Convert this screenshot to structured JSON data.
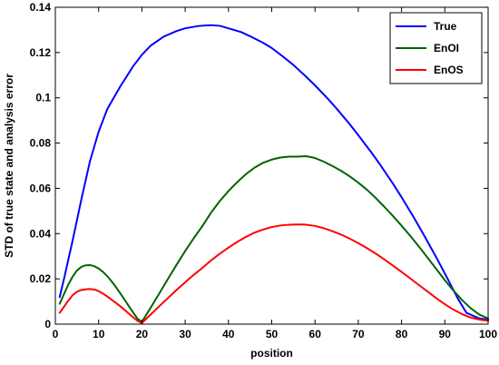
{
  "chart_data": {
    "type": "line",
    "title": "",
    "xlabel": "position",
    "ylabel": "STD of true state and analysis error",
    "xlim": [
      0,
      100
    ],
    "ylim": [
      0,
      0.14
    ],
    "xticks": [
      0,
      10,
      20,
      30,
      40,
      50,
      60,
      70,
      80,
      90,
      100
    ],
    "yticks": [
      0,
      0.02,
      0.04,
      0.06,
      0.08,
      0.1,
      0.12,
      0.14
    ],
    "xtick_labels": [
      "0",
      "10",
      "20",
      "30",
      "40",
      "50",
      "60",
      "70",
      "80",
      "90",
      "100"
    ],
    "ytick_labels": [
      "0",
      "0.02",
      "0.04",
      "0.06",
      "0.08",
      "0.1",
      "0.12",
      "0.14"
    ],
    "grid": false,
    "legend_position": "top-right",
    "series": [
      {
        "name": "True",
        "color": "#0000ff",
        "x": [
          1,
          2,
          4,
          6,
          8,
          10,
          12,
          15,
          18,
          20,
          22,
          25,
          28,
          30,
          33,
          35,
          36,
          38,
          40,
          43,
          45,
          48,
          50,
          53,
          55,
          58,
          60,
          63,
          65,
          68,
          70,
          73,
          75,
          78,
          80,
          83,
          85,
          88,
          90,
          93,
          95,
          98,
          100
        ],
        "y": [
          0.012,
          0.02,
          0.037,
          0.055,
          0.072,
          0.085,
          0.095,
          0.105,
          0.114,
          0.119,
          0.123,
          0.127,
          0.1295,
          0.1307,
          0.1317,
          0.132,
          0.1321,
          0.1318,
          0.1307,
          0.129,
          0.1272,
          0.1243,
          0.122,
          0.1176,
          0.1145,
          0.1092,
          0.1055,
          0.0995,
          0.0952,
          0.0884,
          0.0835,
          0.0759,
          0.0706,
          0.0621,
          0.0561,
          0.0466,
          0.0399,
          0.0296,
          0.0224,
          0.0113,
          0.005,
          0.0025,
          0.002
        ]
      },
      {
        "name": "EnOI",
        "color": "#006400",
        "x": [
          1,
          2,
          3,
          4,
          5,
          6,
          7,
          8,
          9,
          10,
          11,
          12,
          13,
          14,
          15,
          16,
          17,
          18,
          19,
          20,
          22,
          24,
          26,
          28,
          30,
          32,
          34,
          36,
          38,
          40,
          42,
          44,
          46,
          48,
          50,
          52,
          54,
          56,
          57,
          58,
          60,
          62,
          64,
          66,
          68,
          70,
          72,
          74,
          76,
          78,
          80,
          82,
          84,
          86,
          88,
          90,
          92,
          94,
          96,
          98,
          100
        ],
        "y": [
          0.009,
          0.0133,
          0.0175,
          0.021,
          0.0237,
          0.0253,
          0.026,
          0.0261,
          0.0256,
          0.0246,
          0.0231,
          0.0212,
          0.0189,
          0.0164,
          0.0136,
          0.0108,
          0.0079,
          0.0051,
          0.0024,
          0.001,
          0.0072,
          0.0135,
          0.0199,
          0.0262,
          0.0323,
          0.038,
          0.0434,
          0.0493,
          0.0544,
          0.0588,
          0.0627,
          0.0662,
          0.0691,
          0.0713,
          0.0727,
          0.0736,
          0.074,
          0.074,
          0.0741,
          0.0742,
          0.0734,
          0.0718,
          0.0699,
          0.0678,
          0.0653,
          0.0625,
          0.0594,
          0.0558,
          0.0519,
          0.0478,
          0.0435,
          0.039,
          0.0343,
          0.0294,
          0.0244,
          0.0194,
          0.0148,
          0.0106,
          0.007,
          0.0042,
          0.0025
        ]
      },
      {
        "name": "EnOS",
        "color": "#ff0000",
        "x": [
          1,
          2,
          3,
          4,
          5,
          6,
          7,
          8,
          9,
          10,
          11,
          12,
          13,
          14,
          15,
          16,
          17,
          18,
          19,
          20,
          22,
          24,
          26,
          28,
          30,
          32,
          34,
          36,
          38,
          40,
          42,
          44,
          46,
          48,
          50,
          52,
          54,
          56,
          57,
          58,
          60,
          62,
          64,
          66,
          68,
          70,
          72,
          74,
          76,
          78,
          80,
          82,
          84,
          86,
          88,
          90,
          92,
          94,
          96,
          98,
          100
        ],
        "y": [
          0.005,
          0.0077,
          0.0104,
          0.0128,
          0.0143,
          0.0151,
          0.0154,
          0.0155,
          0.0153,
          0.0146,
          0.0135,
          0.0122,
          0.0108,
          0.0094,
          0.0079,
          0.0063,
          0.0046,
          0.003,
          0.0014,
          0.0005,
          0.0042,
          0.0079,
          0.0115,
          0.0151,
          0.0185,
          0.0218,
          0.0249,
          0.0282,
          0.0311,
          0.0338,
          0.0363,
          0.0385,
          0.0404,
          0.0418,
          0.0429,
          0.0436,
          0.0439,
          0.044,
          0.044,
          0.0439,
          0.0434,
          0.0424,
          0.0411,
          0.0396,
          0.0378,
          0.0358,
          0.0336,
          0.0312,
          0.0286,
          0.0259,
          0.0231,
          0.0202,
          0.0173,
          0.0144,
          0.0115,
          0.0088,
          0.0064,
          0.0044,
          0.0029,
          0.002,
          0.0015
        ]
      }
    ]
  }
}
